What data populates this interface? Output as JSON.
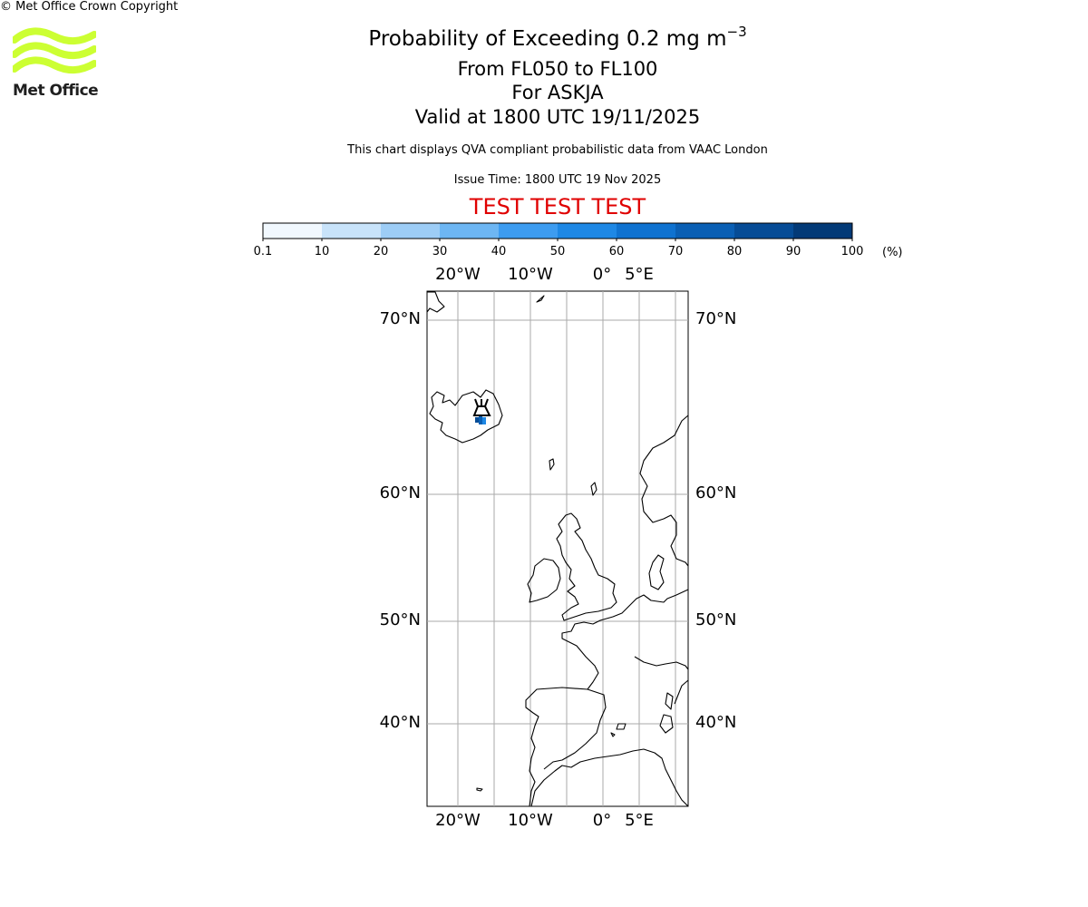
{
  "title": {
    "prefix": "Probability of Exceeding 0.2 mg m",
    "exponent": "−3",
    "levels": "From FL050 to FL100",
    "volcano": "For ASKJA",
    "valid": "Valid at 1800 UTC 19/11/2025"
  },
  "description": "This chart displays QVA compliant probabilistic data from VAAC London",
  "issue_time": "Issue Time: 1800 UTC 19 Nov 2025",
  "test_banner": "TEST TEST TEST",
  "logo": {
    "text": "Met Office",
    "color": "#ccff33"
  },
  "copyright": "© Met Office Crown Copyright",
  "colorbar": {
    "unit": "(%)",
    "ticks": [
      "0.1",
      "10",
      "20",
      "30",
      "40",
      "50",
      "60",
      "70",
      "80",
      "90",
      "100"
    ],
    "colors": [
      "#f1f8fe",
      "#c8e3fa",
      "#9dcdf6",
      "#6db6f3",
      "#3d9cf0",
      "#1e88e5",
      "#0f72d0",
      "#0a5fb4",
      "#064c96",
      "#033a77",
      "#012a5a"
    ]
  },
  "map": {
    "lon_labels": [
      "20°W",
      "10°W",
      "0°",
      "5°E"
    ],
    "lat_labels": [
      "70°N",
      "60°N",
      "50°N",
      "40°N"
    ],
    "volcano_icon": "volcano-icon",
    "plume_colors": [
      "#0a5fb4",
      "#1e88e5",
      "#064c96"
    ]
  }
}
